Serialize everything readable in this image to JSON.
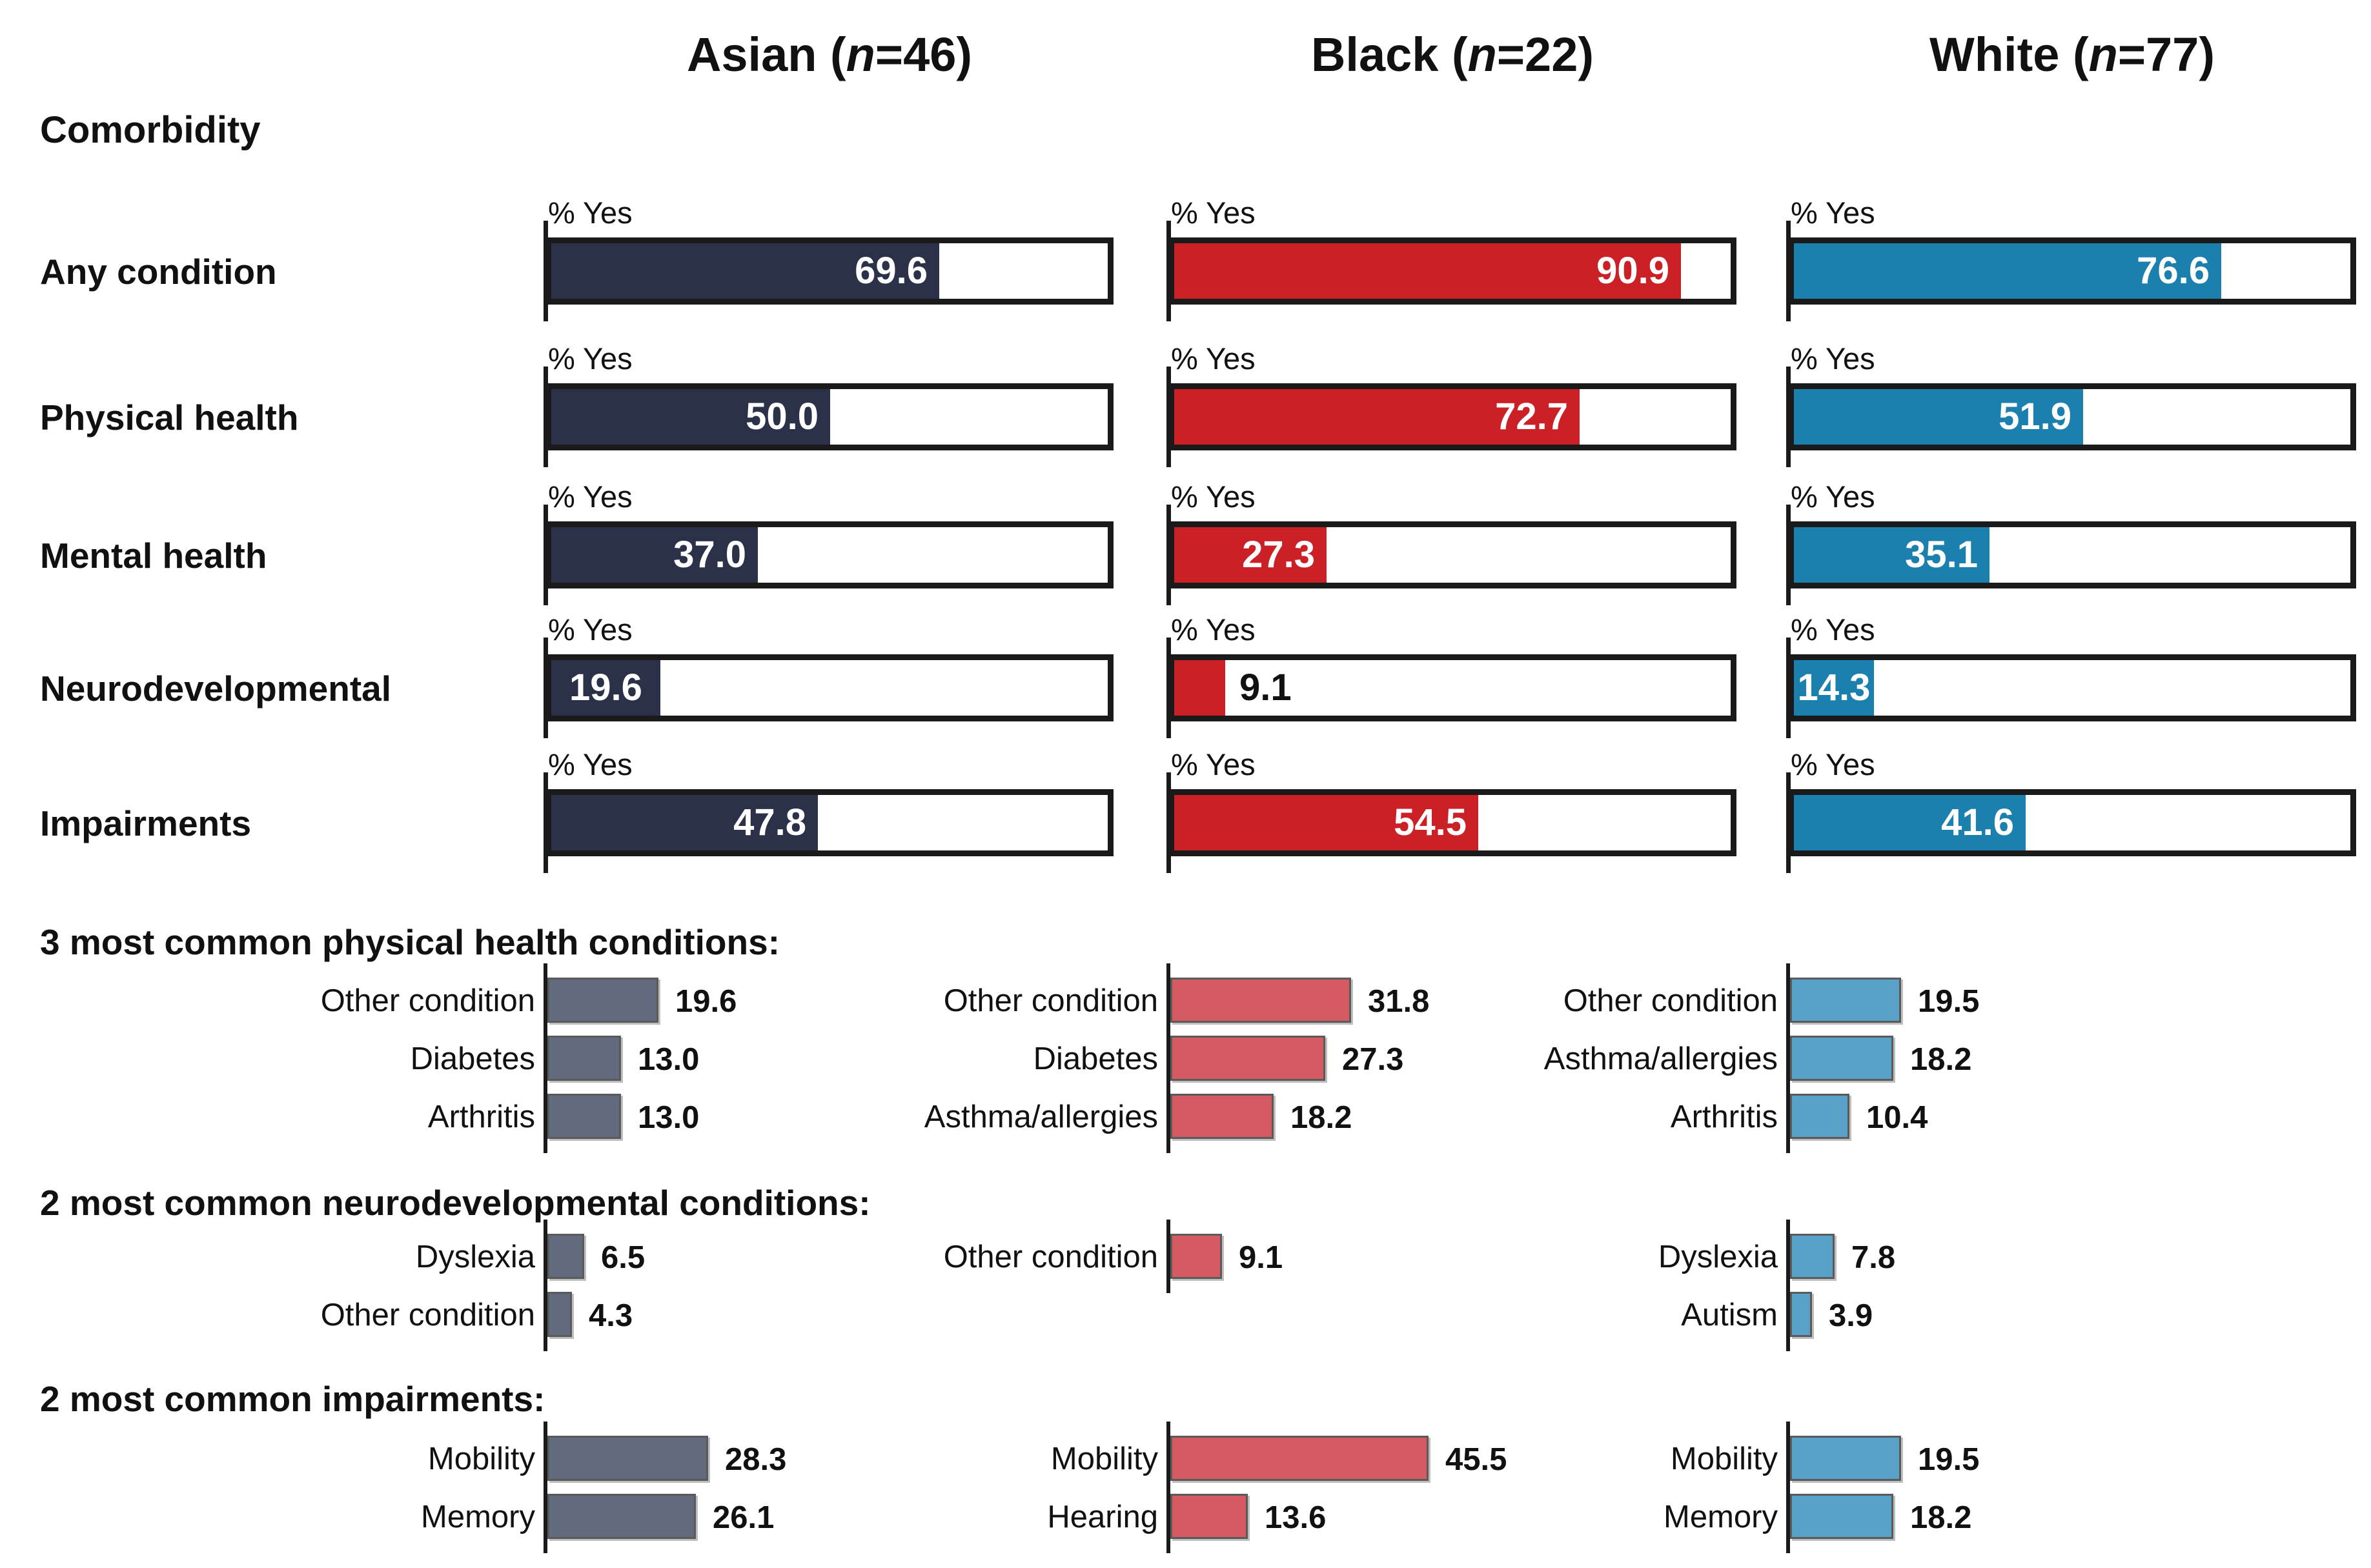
{
  "chart_data": {
    "type": "bar",
    "orientation": "horizontal",
    "unit": "percent",
    "axis_range": [
      0,
      100
    ],
    "grid": false,
    "legend": "none",
    "pct_yes_label": "% Yes",
    "section_label": "Comorbidity",
    "groups": [
      {
        "name": "Asian",
        "n": "46",
        "header_prefix": "Asian (",
        "header_n": "n",
        "header_suffix": "=46)",
        "color": "#2A3149",
        "light_color": "#626A7E"
      },
      {
        "name": "Black",
        "n": "22",
        "header_prefix": "Black (",
        "header_n": "n",
        "header_suffix": "=22)",
        "color": "#CC2027",
        "light_color": "#D65A62"
      },
      {
        "name": "White",
        "n": "77",
        "header_prefix": "White (",
        "header_n": "n",
        "header_suffix": "=77)",
        "color": "#1C80AF",
        "light_color": "#58A1C8"
      }
    ],
    "rows": [
      {
        "label": "Any condition",
        "values": [
          "69.6",
          "90.9",
          "76.6"
        ]
      },
      {
        "label": "Physical health",
        "values": [
          "50.0",
          "72.7",
          "51.9"
        ]
      },
      {
        "label": "Mental health",
        "values": [
          "37.0",
          "27.3",
          "35.1"
        ]
      },
      {
        "label": "Neurodevelopmental",
        "values": [
          "19.6",
          "9.1",
          "14.3"
        ]
      },
      {
        "label": "Impairments",
        "values": [
          "47.8",
          "54.5",
          "41.6"
        ]
      }
    ],
    "sections": [
      {
        "heading": "3 most common physical health conditions:",
        "columns": [
          [
            {
              "label": "Other condition",
              "value": "19.6"
            },
            {
              "label": "Diabetes",
              "value": "13.0"
            },
            {
              "label": "Arthritis",
              "value": "13.0"
            }
          ],
          [
            {
              "label": "Other condition",
              "value": "31.8"
            },
            {
              "label": "Diabetes",
              "value": "27.3"
            },
            {
              "label": "Asthma/allergies",
              "value": "18.2"
            }
          ],
          [
            {
              "label": "Other condition",
              "value": "19.5"
            },
            {
              "label": "Asthma/allergies",
              "value": "18.2"
            },
            {
              "label": "Arthritis",
              "value": "10.4"
            }
          ]
        ]
      },
      {
        "heading": "2 most common neurodevelopmental conditions:",
        "columns": [
          [
            {
              "label": "Dyslexia",
              "value": "6.5"
            },
            {
              "label": "Other condition",
              "value": "4.3"
            }
          ],
          [
            {
              "label": "Other condition",
              "value": "9.1"
            }
          ],
          [
            {
              "label": "Dyslexia",
              "value": "7.8"
            },
            {
              "label": "Autism",
              "value": "3.9"
            }
          ]
        ]
      },
      {
        "heading": "2 most common impairments:",
        "columns": [
          [
            {
              "label": "Mobility",
              "value": "28.3"
            },
            {
              "label": "Memory",
              "value": "26.1"
            }
          ],
          [
            {
              "label": "Mobility",
              "value": "45.5"
            },
            {
              "label": "Hearing",
              "value": "13.6"
            }
          ],
          [
            {
              "label": "Mobility",
              "value": "19.5"
            },
            {
              "label": "Memory",
              "value": "18.2"
            }
          ]
        ]
      }
    ]
  }
}
